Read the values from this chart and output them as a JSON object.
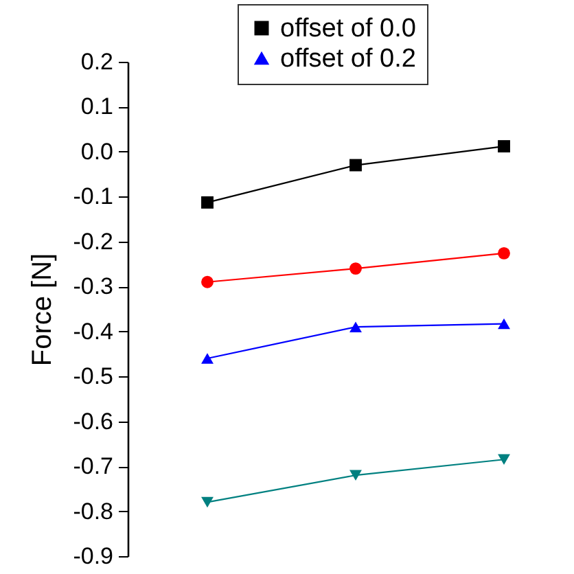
{
  "chart_data": {
    "type": "line",
    "ylabel": "Force [N]",
    "categories": [
      null,
      null,
      null
    ],
    "series": [
      {
        "name": "offset of 0.0",
        "color": "#000000",
        "marker": "square",
        "values": [
          -0.113,
          -0.03,
          0.012
        ]
      },
      {
        "color": "#ff0000",
        "marker": "circle",
        "values": [
          -0.29,
          -0.26,
          -0.226
        ]
      },
      {
        "name": "offset of 0.2",
        "color": "#0000ff",
        "marker": "triangle",
        "values": [
          -0.46,
          -0.39,
          -0.383
        ]
      },
      {
        "color": "#008080",
        "marker": "triangle-down",
        "values": [
          -0.78,
          -0.72,
          -0.685
        ]
      }
    ],
    "ylim": [
      -0.9,
      0.2
    ],
    "yticks": [
      0.2,
      0.1,
      {
        "value": 0,
        "label": "0.0"
      },
      -0.1,
      -0.2,
      -0.3,
      -0.4,
      -0.5,
      -0.6,
      -0.7,
      -0.8,
      -0.9
    ],
    "tick_labels": "y",
    "grid": false,
    "legend": "top"
  }
}
